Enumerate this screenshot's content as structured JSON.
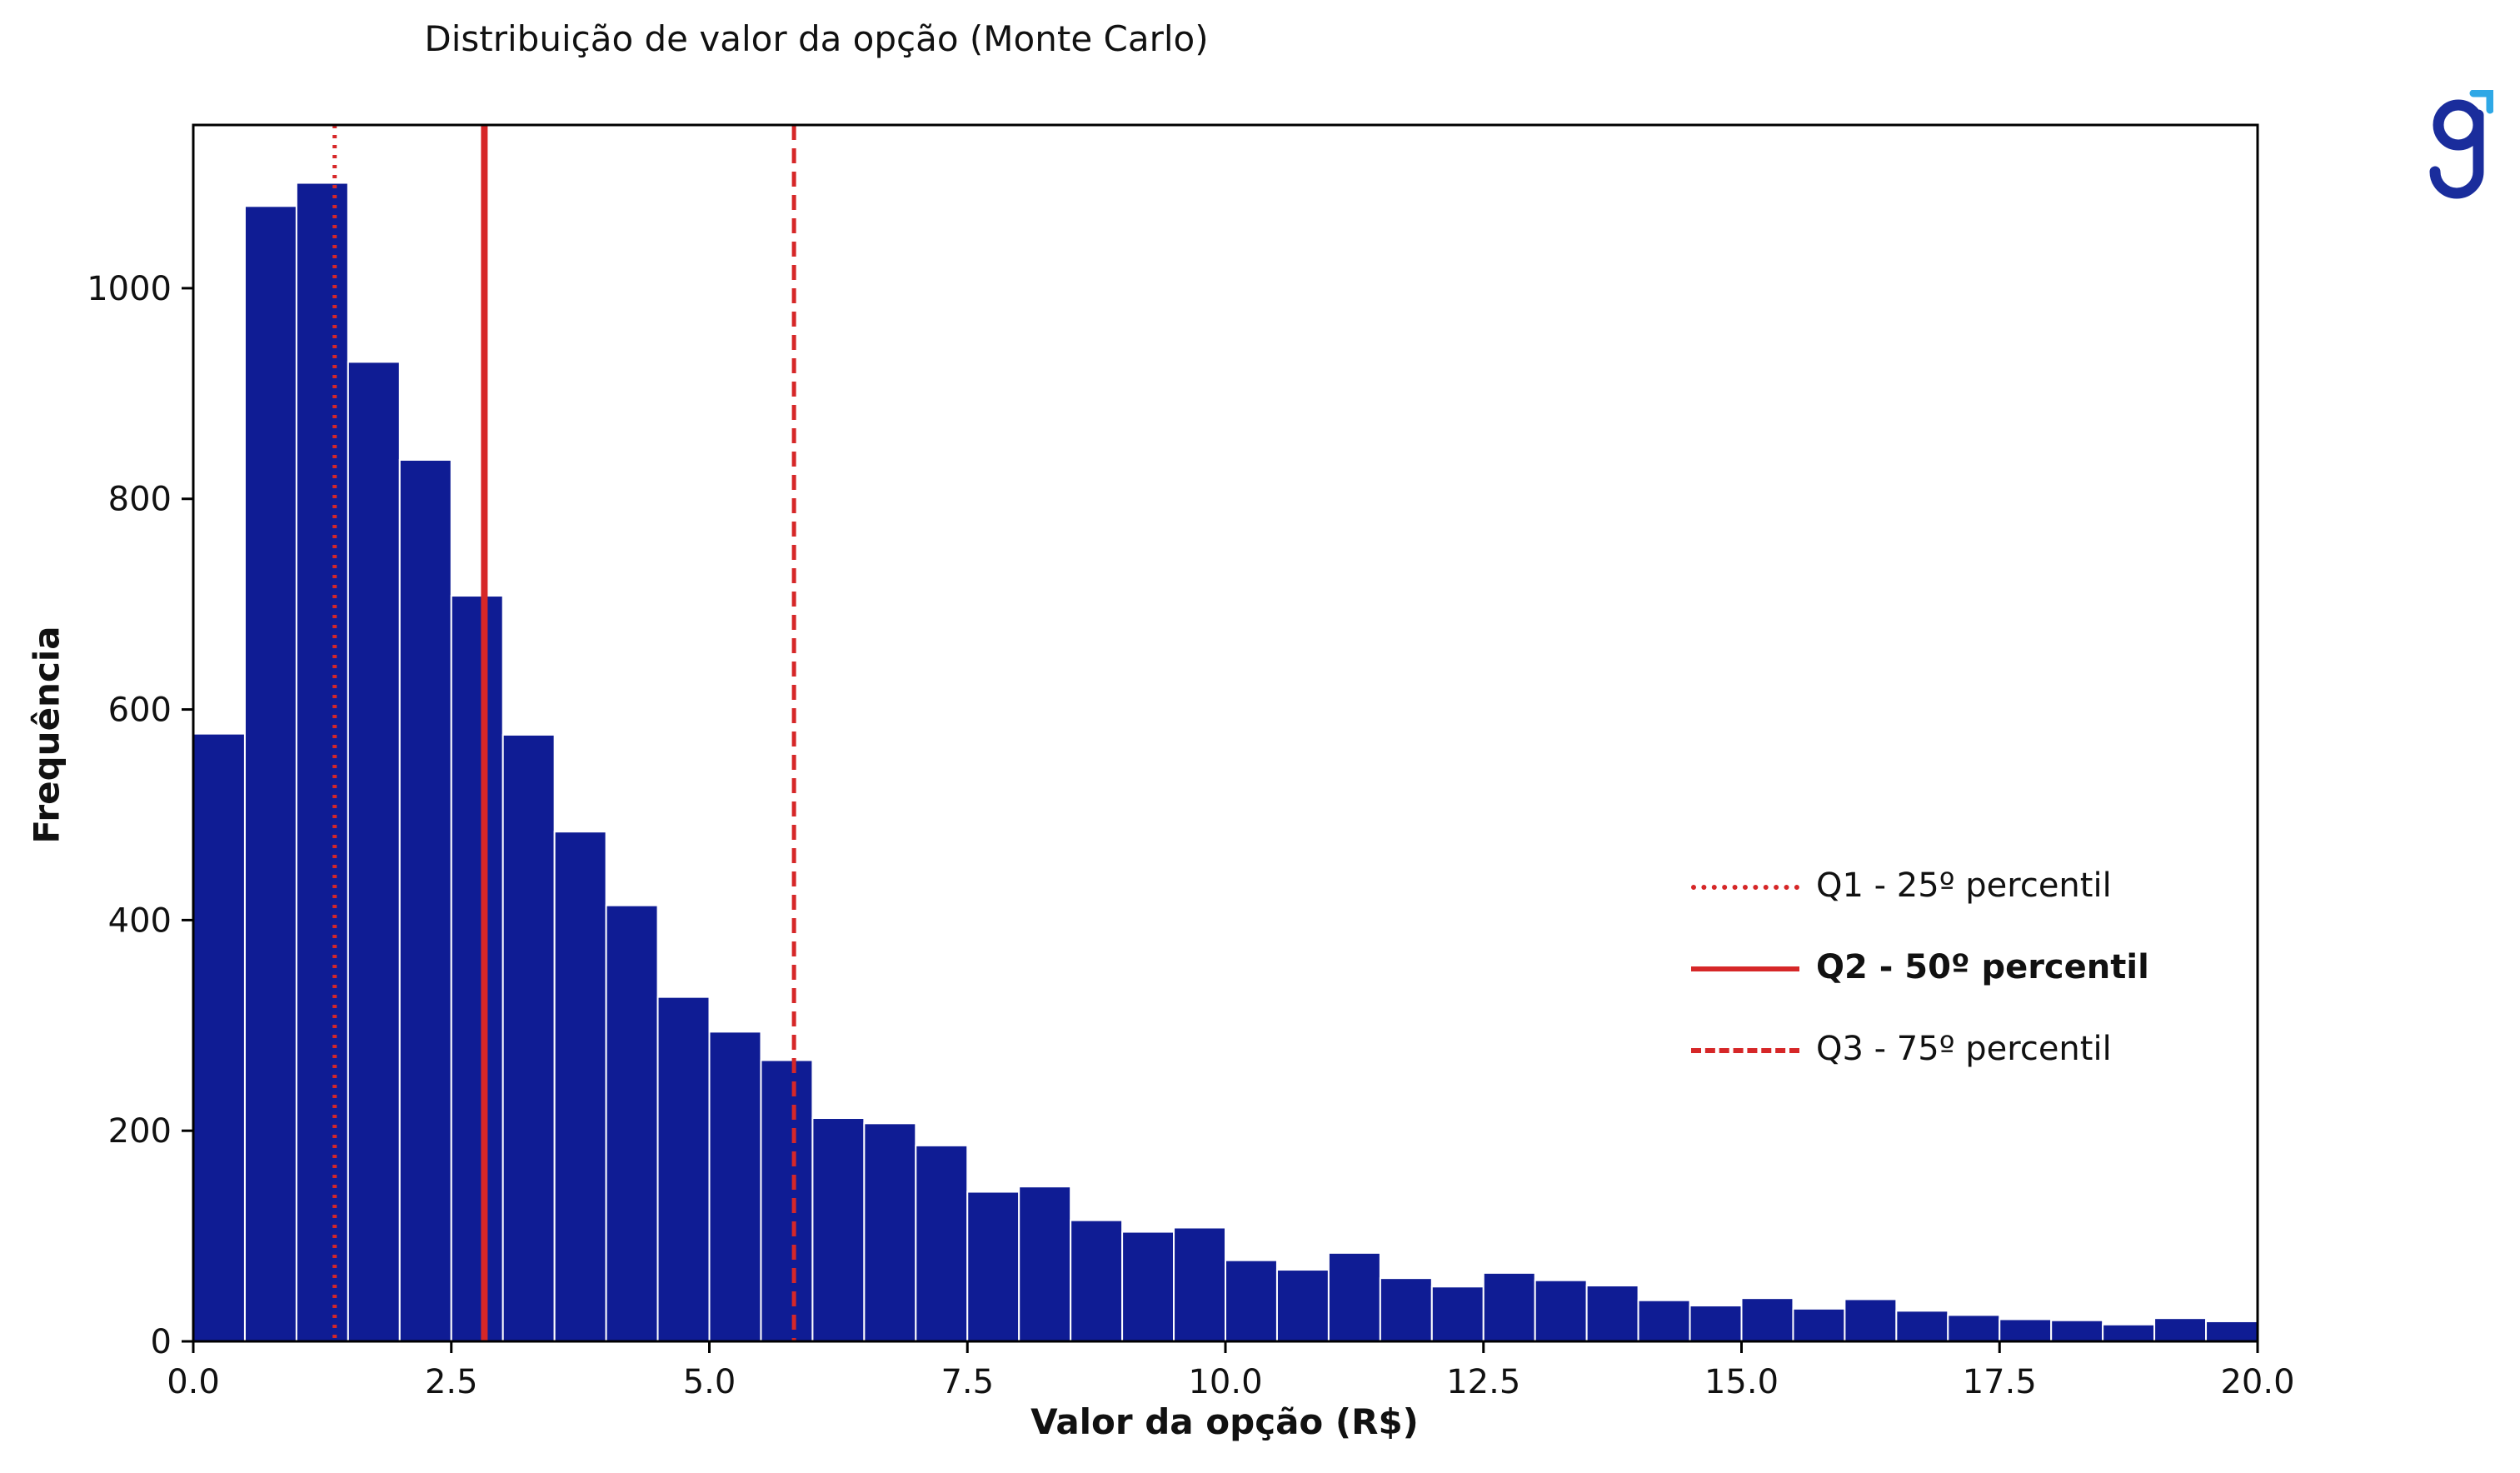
{
  "chart_data": {
    "type": "bar",
    "title": "Distribuição de valor da opção (Monte Carlo)",
    "xlabel": "Valor da opção (R$)",
    "ylabel": "Frequência",
    "xlim": [
      0,
      20
    ],
    "ylim": [
      0,
      1155
    ],
    "bin_width": 0.5,
    "bins_start": [
      0.0,
      0.5,
      1.0,
      1.5,
      2.0,
      2.5,
      3.0,
      3.5,
      4.0,
      4.5,
      5.0,
      5.5,
      6.0,
      6.5,
      7.0,
      7.5,
      8.0,
      8.5,
      9.0,
      9.5,
      10.0,
      10.5,
      11.0,
      11.5,
      12.0,
      12.5,
      13.0,
      13.5,
      14.0,
      14.5,
      15.0,
      15.5,
      16.0,
      16.5,
      17.0,
      17.5,
      18.0,
      18.5,
      19.0,
      19.5
    ],
    "values": [
      577,
      1078,
      1100,
      930,
      837,
      708,
      576,
      484,
      414,
      327,
      294,
      267,
      212,
      207,
      186,
      142,
      147,
      115,
      104,
      108,
      77,
      68,
      84,
      60,
      52,
      65,
      58,
      53,
      39,
      34,
      41,
      31,
      40,
      29,
      25,
      21,
      20,
      16,
      22,
      19
    ],
    "xticks": [
      "0.0",
      "2.5",
      "5.0",
      "7.5",
      "10.0",
      "12.5",
      "15.0",
      "17.5",
      "20.0"
    ],
    "xtick_values": [
      0,
      2.5,
      5,
      7.5,
      10,
      12.5,
      15,
      17.5,
      20
    ],
    "yticks": [
      "0",
      "200",
      "400",
      "600",
      "800",
      "1000"
    ],
    "ytick_values": [
      0,
      200,
      400,
      600,
      800,
      1000
    ],
    "bar_color": "#0f1c94",
    "line_color": "#d62728",
    "grid": false,
    "legend_position": "right",
    "percentile_lines": [
      {
        "label": "Q1 - 25º percentil",
        "x": 1.37,
        "style": "dotted"
      },
      {
        "label": "Q2 - 50º percentil",
        "x": 2.82,
        "style": "solid"
      },
      {
        "label": "Q3 - 75º percentil",
        "x": 5.82,
        "style": "dashed"
      }
    ]
  },
  "logo": {
    "name": "g-logo-icon",
    "color": "#1a2d9c",
    "accent": "#2ea8e6"
  }
}
